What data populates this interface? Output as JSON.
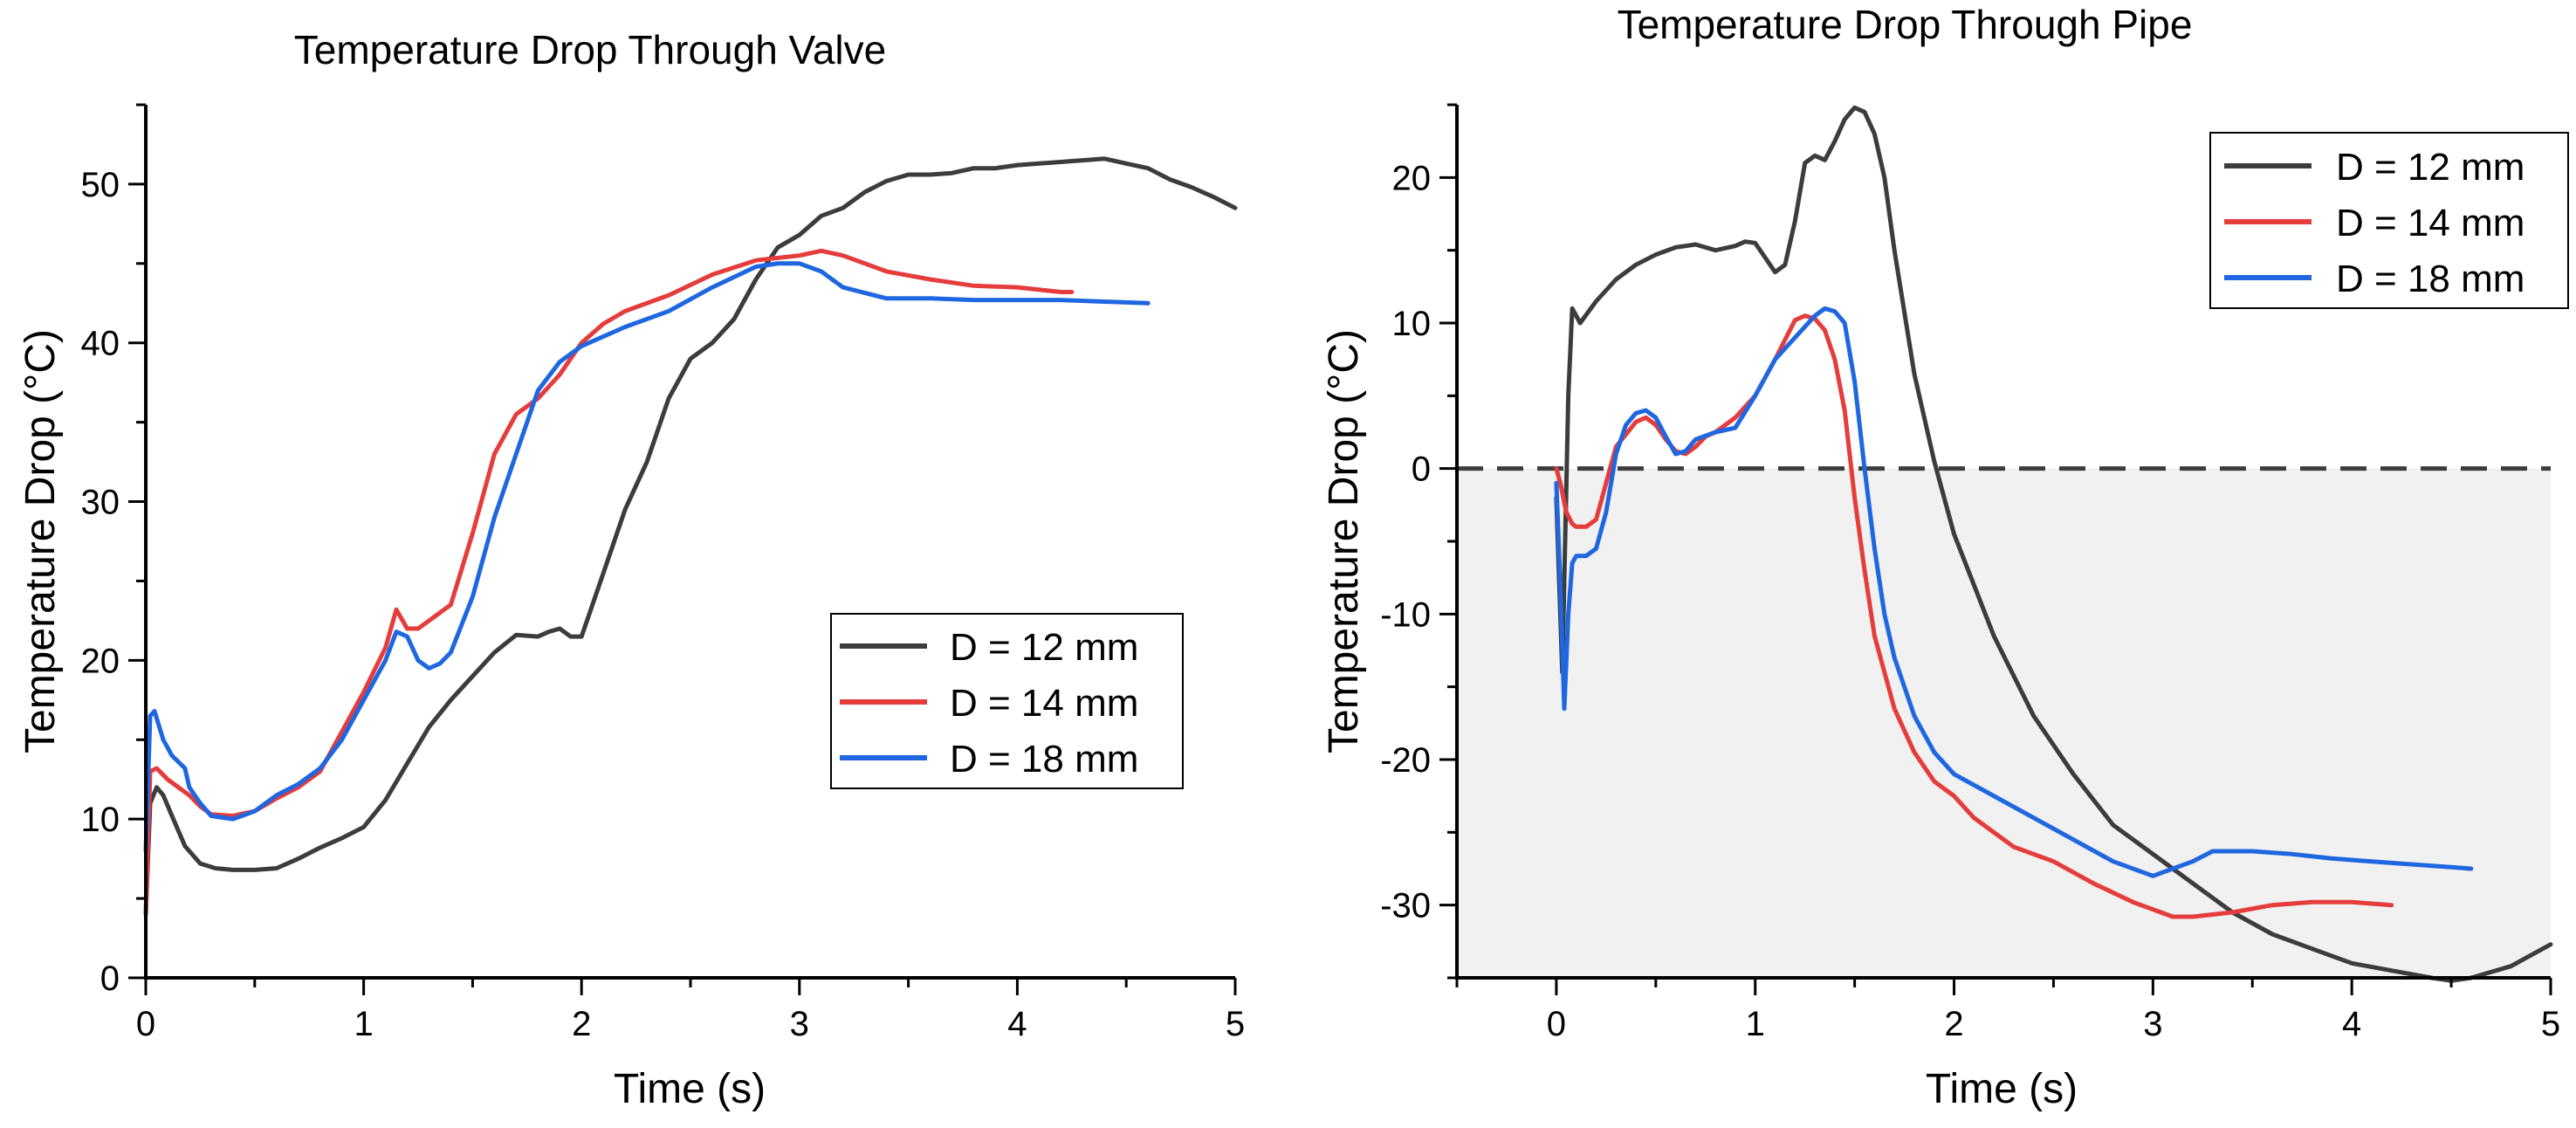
{
  "chart_data": [
    {
      "type": "line",
      "title": "Temperature Drop Through Valve",
      "xlabel": "Time (s)",
      "ylabel": "Temperature Drop (°C)",
      "xlim": [
        0,
        5
      ],
      "ylim": [
        0,
        55
      ],
      "xticks": [
        0,
        1,
        2,
        3,
        4,
        5
      ],
      "yticks": [
        0,
        10,
        20,
        30,
        40,
        50
      ],
      "legend_position": "middle-right",
      "grid": false,
      "series": [
        {
          "name": "D = 12 mm",
          "color": "#3c3c3c",
          "x": [
            0,
            0.02,
            0.05,
            0.08,
            0.12,
            0.18,
            0.25,
            0.32,
            0.4,
            0.5,
            0.6,
            0.7,
            0.8,
            0.9,
            1.0,
            1.1,
            1.2,
            1.3,
            1.4,
            1.5,
            1.6,
            1.7,
            1.8,
            1.85,
            1.9,
            1.95,
            2.0,
            2.1,
            2.2,
            2.3,
            2.4,
            2.5,
            2.6,
            2.7,
            2.8,
            2.9,
            3.0,
            3.1,
            3.2,
            3.3,
            3.4,
            3.5,
            3.6,
            3.7,
            3.8,
            3.9,
            4.0,
            4.1,
            4.2,
            4.3,
            4.4,
            4.5,
            4.6,
            4.7,
            4.8,
            4.9,
            5.0
          ],
          "y": [
            4,
            11,
            12,
            11.5,
            10.2,
            8.3,
            7.2,
            6.9,
            6.8,
            6.8,
            6.9,
            7.5,
            8.2,
            8.8,
            9.5,
            11.2,
            13.5,
            15.8,
            17.5,
            19.0,
            20.5,
            21.6,
            21.5,
            21.8,
            22.0,
            21.5,
            21.5,
            25.5,
            29.5,
            32.5,
            36.5,
            39.0,
            40.0,
            41.5,
            44.0,
            46.0,
            46.8,
            48.0,
            48.5,
            49.5,
            50.2,
            50.6,
            50.6,
            50.7,
            51.0,
            51.0,
            51.2,
            51.3,
            51.4,
            51.5,
            51.6,
            51.3,
            51.0,
            50.3,
            49.8,
            49.2,
            48.5
          ]
        },
        {
          "name": "D = 14 mm",
          "color": "#e53c3c",
          "x": [
            0,
            0.02,
            0.05,
            0.1,
            0.15,
            0.2,
            0.25,
            0.3,
            0.4,
            0.5,
            0.6,
            0.7,
            0.8,
            0.9,
            1.0,
            1.1,
            1.15,
            1.2,
            1.25,
            1.3,
            1.4,
            1.5,
            1.6,
            1.7,
            1.8,
            1.9,
            2.0,
            2.1,
            2.2,
            2.4,
            2.6,
            2.8,
            3.0,
            3.1,
            3.2,
            3.4,
            3.6,
            3.8,
            4.0,
            4.2,
            4.25
          ],
          "y": [
            4,
            13.0,
            13.2,
            12.5,
            12.0,
            11.5,
            10.8,
            10.3,
            10.2,
            10.5,
            11.3,
            12.0,
            13.0,
            15.5,
            18.0,
            20.8,
            23.2,
            22.0,
            22.0,
            22.5,
            23.5,
            28.0,
            33.0,
            35.5,
            36.5,
            38.0,
            40.0,
            41.2,
            42.0,
            43.0,
            44.3,
            45.2,
            45.5,
            45.8,
            45.5,
            44.5,
            44.0,
            43.6,
            43.5,
            43.2,
            43.2
          ]
        },
        {
          "name": "D = 18 mm",
          "color": "#1f67e0",
          "x": [
            0,
            0.02,
            0.04,
            0.08,
            0.12,
            0.18,
            0.2,
            0.25,
            0.3,
            0.4,
            0.5,
            0.6,
            0.7,
            0.8,
            0.9,
            1.0,
            1.1,
            1.15,
            1.2,
            1.25,
            1.3,
            1.35,
            1.4,
            1.5,
            1.6,
            1.7,
            1.8,
            1.9,
            2.0,
            2.2,
            2.4,
            2.6,
            2.8,
            2.9,
            3.0,
            3.1,
            3.2,
            3.4,
            3.6,
            3.8,
            4.0,
            4.2,
            4.4,
            4.6
          ],
          "y": [
            8,
            16.5,
            16.8,
            15.0,
            14.0,
            13.2,
            12.0,
            11.0,
            10.2,
            10.0,
            10.5,
            11.5,
            12.2,
            13.2,
            15.0,
            17.5,
            20.0,
            21.8,
            21.5,
            20.0,
            19.5,
            19.8,
            20.5,
            24.0,
            29.0,
            33.0,
            37.0,
            38.8,
            39.8,
            41.0,
            42.0,
            43.5,
            44.8,
            45.0,
            45.0,
            44.5,
            43.5,
            42.8,
            42.8,
            42.7,
            42.7,
            42.7,
            42.6,
            42.5
          ]
        }
      ]
    },
    {
      "type": "line",
      "title": "Temperature Drop Through Pipe",
      "xlabel": "Time (s)",
      "ylabel": "Temperature Drop (°C)",
      "xlim": [
        -0.5,
        5
      ],
      "ylim": [
        -35,
        25
      ],
      "xticks": [
        0,
        1,
        2,
        3,
        4,
        5
      ],
      "yticks": [
        -30,
        -20,
        -10,
        0,
        10,
        20
      ],
      "legend_position": "top-right",
      "grid": false,
      "reference_line_y": 0,
      "shaded_below_zero": true,
      "series": [
        {
          "name": "D = 12 mm",
          "color": "#3c3c3c",
          "x": [
            0.0,
            0.03,
            0.06,
            0.08,
            0.12,
            0.2,
            0.3,
            0.4,
            0.5,
            0.6,
            0.7,
            0.8,
            0.9,
            0.95,
            1.0,
            1.05,
            1.1,
            1.15,
            1.2,
            1.25,
            1.3,
            1.35,
            1.4,
            1.45,
            1.5,
            1.55,
            1.6,
            1.65,
            1.7,
            1.8,
            1.9,
            2.0,
            2.2,
            2.4,
            2.6,
            2.8,
            3.0,
            3.2,
            3.4,
            3.6,
            3.8,
            4.0,
            4.2,
            4.4,
            4.5,
            4.6,
            4.8,
            5.0
          ],
          "y": [
            -2,
            -14,
            5,
            11,
            10,
            11.5,
            13.0,
            14.0,
            14.7,
            15.2,
            15.4,
            15.0,
            15.3,
            15.6,
            15.5,
            14.5,
            13.5,
            14.0,
            17.0,
            21.0,
            21.5,
            21.2,
            22.5,
            24.0,
            24.8,
            24.5,
            23.0,
            20.0,
            15.0,
            6.5,
            0.5,
            -4.5,
            -11.5,
            -17.0,
            -21.0,
            -24.5,
            -26.5,
            -28.5,
            -30.5,
            -32.0,
            -33.0,
            -34.0,
            -34.5,
            -35.0,
            -35.2,
            -35.0,
            -34.2,
            -32.7
          ]
        },
        {
          "name": "D = 14 mm",
          "color": "#e53c3c",
          "x": [
            0.0,
            0.02,
            0.05,
            0.08,
            0.1,
            0.15,
            0.2,
            0.25,
            0.3,
            0.4,
            0.45,
            0.5,
            0.55,
            0.6,
            0.65,
            0.7,
            0.75,
            0.8,
            0.9,
            1.0,
            1.1,
            1.2,
            1.25,
            1.3,
            1.35,
            1.4,
            1.45,
            1.5,
            1.55,
            1.6,
            1.7,
            1.8,
            1.9,
            2.0,
            2.1,
            2.3,
            2.5,
            2.7,
            2.9,
            3.1,
            3.2,
            3.4,
            3.6,
            3.8,
            4.0,
            4.2
          ],
          "y": [
            0,
            -1,
            -3,
            -3.8,
            -4.0,
            -4.0,
            -3.5,
            -1.0,
            1.5,
            3.2,
            3.5,
            3.0,
            2.0,
            1.2,
            1.0,
            1.5,
            2.2,
            2.5,
            3.5,
            5.0,
            7.5,
            10.2,
            10.5,
            10.3,
            9.5,
            7.5,
            4.0,
            -2.0,
            -7.0,
            -11.5,
            -16.5,
            -19.5,
            -21.5,
            -22.5,
            -24.0,
            -26.0,
            -27.0,
            -28.5,
            -29.8,
            -30.8,
            -30.8,
            -30.5,
            -30.0,
            -29.8,
            -29.8,
            -30.0
          ]
        },
        {
          "name": "D = 18 mm",
          "color": "#1f67e0",
          "x": [
            0.0,
            0.02,
            0.04,
            0.06,
            0.08,
            0.1,
            0.15,
            0.2,
            0.25,
            0.3,
            0.35,
            0.4,
            0.45,
            0.5,
            0.55,
            0.6,
            0.65,
            0.7,
            0.8,
            0.9,
            1.0,
            1.1,
            1.2,
            1.3,
            1.35,
            1.4,
            1.45,
            1.5,
            1.55,
            1.6,
            1.65,
            1.7,
            1.8,
            1.9,
            2.0,
            2.2,
            2.4,
            2.6,
            2.8,
            3.0,
            3.1,
            3.2,
            3.3,
            3.5,
            3.7,
            3.9,
            4.1,
            4.3,
            4.5,
            4.6
          ],
          "y": [
            -1,
            -8,
            -16.5,
            -10,
            -6.5,
            -6.0,
            -6.0,
            -5.5,
            -3.0,
            1.0,
            3.0,
            3.8,
            4.0,
            3.5,
            2.2,
            1.0,
            1.2,
            2.0,
            2.5,
            2.8,
            5.0,
            7.5,
            9.0,
            10.5,
            11.0,
            10.8,
            10.0,
            6.0,
            0.0,
            -5.5,
            -10.0,
            -13.0,
            -17.0,
            -19.5,
            -21.0,
            -22.5,
            -24.0,
            -25.5,
            -27.0,
            -28.0,
            -27.5,
            -27.0,
            -26.3,
            -26.3,
            -26.5,
            -26.8,
            -27.0,
            -27.2,
            -27.4,
            -27.5
          ]
        }
      ]
    }
  ]
}
